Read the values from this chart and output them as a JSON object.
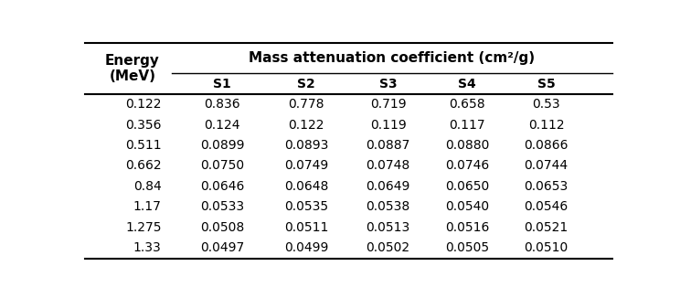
{
  "title_left": "Energy\n(MeV)",
  "title_right": "Mass attenuation coefficient (cm²/g)",
  "col_headers": [
    "S1",
    "S2",
    "S3",
    "S4",
    "S5"
  ],
  "energy_col": [
    "0.122",
    "0.356",
    "0.511",
    "0.662",
    "0.84",
    "1.17",
    "1.275",
    "1.33"
  ],
  "data": [
    [
      "0.836",
      "0.778",
      "0.719",
      "0.658",
      "0.53"
    ],
    [
      "0.124",
      "0.122",
      "0.119",
      "0.117",
      "0.112"
    ],
    [
      "0.0899",
      "0.0893",
      "0.0887",
      "0.0880",
      "0.0866"
    ],
    [
      "0.0750",
      "0.0749",
      "0.0748",
      "0.0746",
      "0.0744"
    ],
    [
      "0.0646",
      "0.0648",
      "0.0649",
      "0.0650",
      "0.0653"
    ],
    [
      "0.0533",
      "0.0535",
      "0.0538",
      "0.0540",
      "0.0546"
    ],
    [
      "0.0508",
      "0.0511",
      "0.0513",
      "0.0516",
      "0.0521"
    ],
    [
      "0.0497",
      "0.0499",
      "0.0502",
      "0.0505",
      "0.0510"
    ]
  ],
  "bg_color": "#ffffff",
  "text_color": "#000000",
  "line_color": "#000000",
  "font_size": 10,
  "header_font_size": 11
}
